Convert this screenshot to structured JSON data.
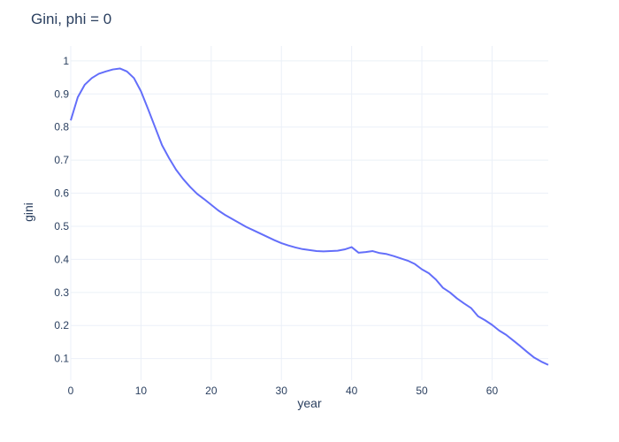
{
  "chart_data": {
    "type": "line",
    "title": "Gini, phi = 0",
    "xlabel": "year",
    "ylabel": "gini",
    "xlim": [
      0,
      68
    ],
    "ylim": [
      0.035,
      1.045
    ],
    "x_ticks": [
      0,
      10,
      20,
      30,
      40,
      50,
      60
    ],
    "y_ticks": [
      0.1,
      0.2,
      0.3,
      0.4,
      0.5,
      0.6,
      0.7,
      0.8,
      0.9,
      1
    ],
    "grid": true,
    "legend": "none",
    "line_color": "#636efa",
    "series": [
      {
        "x": [
          0,
          1,
          2,
          3,
          4,
          5,
          6,
          7,
          8,
          9,
          10,
          11,
          12,
          13,
          14,
          15,
          16,
          17,
          18,
          19,
          20,
          21,
          22,
          23,
          24,
          25,
          26,
          27,
          28,
          29,
          30,
          31,
          32,
          33,
          34,
          35,
          36,
          37,
          38,
          39,
          40,
          41,
          42,
          43,
          44,
          45,
          46,
          47,
          48,
          49,
          50,
          51,
          52,
          53,
          54,
          55,
          56,
          57,
          58,
          59,
          60,
          61,
          62,
          63,
          64,
          65,
          66,
          67,
          68
        ],
        "y": [
          0.82,
          0.89,
          0.928,
          0.948,
          0.961,
          0.968,
          0.974,
          0.977,
          0.968,
          0.948,
          0.908,
          0.855,
          0.8,
          0.745,
          0.706,
          0.671,
          0.643,
          0.619,
          0.598,
          0.582,
          0.565,
          0.548,
          0.534,
          0.522,
          0.51,
          0.498,
          0.488,
          0.478,
          0.468,
          0.458,
          0.449,
          0.442,
          0.436,
          0.431,
          0.428,
          0.425,
          0.424,
          0.425,
          0.426,
          0.43,
          0.437,
          0.42,
          0.422,
          0.425,
          0.419,
          0.416,
          0.41,
          0.403,
          0.396,
          0.386,
          0.37,
          0.358,
          0.339,
          0.314,
          0.3,
          0.282,
          0.267,
          0.253,
          0.228,
          0.216,
          0.202,
          0.185,
          0.172,
          0.155,
          0.138,
          0.12,
          0.103,
          0.091,
          0.081
        ]
      }
    ]
  }
}
